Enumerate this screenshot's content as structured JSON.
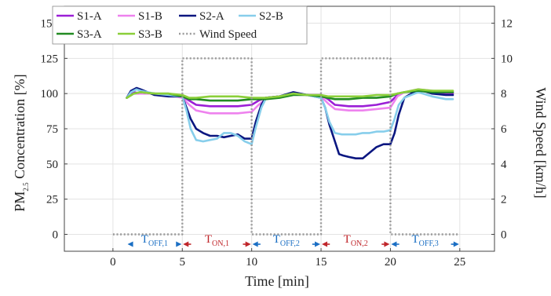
{
  "chart_data": {
    "type": "line",
    "xlabel": "Time [min]",
    "ylabel_left": {
      "main": "PM",
      "sub": "2.5",
      "rest": " Concentration [%]"
    },
    "ylabel_right": "Wind Speed [km/h]",
    "xlim": [
      -3.5,
      27.5
    ],
    "ylim_left": [
      -12,
      162
    ],
    "ylim_right": [
      -0.96,
      12.96
    ],
    "xticks": [
      0,
      5,
      10,
      15,
      20,
      25
    ],
    "yticks_left": [
      0,
      25,
      50,
      75,
      100,
      125,
      150
    ],
    "yticks_right": [
      0,
      2,
      4,
      6,
      8,
      10,
      12
    ],
    "grid": true,
    "legend": {
      "position": "top-left",
      "columns": 4
    },
    "series": [
      {
        "name": "S1-A",
        "color": "#9b1fd6",
        "x": [
          1,
          1.5,
          2,
          3,
          4,
          5,
          5.5,
          6,
          7,
          8,
          9,
          10,
          10.5,
          11,
          12,
          13,
          14,
          15,
          15.5,
          16,
          17,
          18,
          19,
          20,
          20.5,
          21,
          22,
          23,
          24,
          24.5
        ],
        "y": [
          97,
          101,
          100,
          100,
          99,
          98,
          95,
          92,
          91,
          91,
          91,
          92,
          95,
          97,
          98,
          100,
          99,
          99,
          96,
          92,
          91,
          91,
          92,
          94,
          99,
          101,
          102,
          101,
          100,
          100
        ]
      },
      {
        "name": "S1-B",
        "color": "#ee82ee",
        "x": [
          1,
          1.5,
          2,
          3,
          4,
          5,
          5.5,
          6,
          7,
          8,
          9,
          10,
          10.5,
          11,
          12,
          13,
          14,
          15,
          15.5,
          16,
          17,
          18,
          19,
          20,
          20.5,
          21,
          22,
          23,
          24,
          24.5
        ],
        "y": [
          97,
          100,
          100,
          100,
          99,
          97,
          92,
          88,
          86,
          86,
          86,
          87,
          92,
          96,
          98,
          100,
          99,
          98,
          93,
          89,
          88,
          88,
          89,
          90,
          98,
          101,
          103,
          102,
          101,
          101
        ]
      },
      {
        "name": "S2-A",
        "color": "#0a1680",
        "x": [
          1,
          1.3,
          1.7,
          2,
          2.5,
          3,
          4,
          5,
          5.3,
          5.6,
          6,
          6.5,
          7,
          7.5,
          8,
          8.5,
          9,
          9.5,
          10,
          10.3,
          10.7,
          11,
          12,
          13,
          14,
          15,
          15.3,
          15.6,
          16,
          16.3,
          16.6,
          17,
          17.5,
          18,
          18.5,
          19,
          19.5,
          20,
          20.3,
          20.6,
          21,
          22,
          23,
          24,
          24.5
        ],
        "y": [
          97,
          102,
          104,
          103,
          101,
          99,
          98,
          98,
          90,
          82,
          75,
          72,
          70,
          70,
          69,
          70,
          71,
          68,
          68,
          80,
          92,
          97,
          98,
          101,
          99,
          97,
          90,
          78,
          66,
          57,
          56,
          55,
          54,
          54,
          58,
          62,
          64,
          64,
          72,
          85,
          97,
          103,
          100,
          99,
          99
        ]
      },
      {
        "name": "S2-B",
        "color": "#87ceeb",
        "x": [
          1,
          1.3,
          1.7,
          2,
          2.5,
          3,
          4,
          5,
          5.3,
          5.6,
          6,
          6.5,
          7,
          7.5,
          8,
          8.5,
          9,
          9.5,
          10,
          10.3,
          10.7,
          11,
          12,
          13,
          14,
          15,
          15.3,
          15.6,
          16,
          16.5,
          17,
          17.5,
          18,
          18.5,
          19,
          19.5,
          20,
          20.3,
          20.6,
          21,
          22,
          23,
          24,
          24.5
        ],
        "y": [
          97,
          101,
          103,
          102,
          101,
          100,
          99,
          98,
          88,
          75,
          67,
          66,
          67,
          68,
          72,
          72,
          70,
          66,
          64,
          76,
          90,
          96,
          98,
          100,
          99,
          97,
          90,
          80,
          72,
          71,
          71,
          71,
          72,
          72,
          73,
          73,
          74,
          82,
          92,
          97,
          101,
          98,
          96,
          96
        ]
      },
      {
        "name": "S3-A",
        "color": "#228b22",
        "x": [
          1,
          1.5,
          2,
          3,
          4,
          5,
          5.5,
          6,
          7,
          8,
          9,
          10,
          10.5,
          11,
          12,
          13,
          14,
          15,
          15.5,
          16,
          17,
          18,
          19,
          20,
          20.5,
          21,
          22,
          23,
          24,
          24.5
        ],
        "y": [
          97,
          100,
          101,
          100,
          100,
          98,
          96,
          96,
          95,
          95,
          95,
          96,
          96,
          96,
          97,
          99,
          99,
          98,
          97,
          96,
          96,
          97,
          97,
          98,
          100,
          101,
          102,
          101,
          101,
          101
        ]
      },
      {
        "name": "S3-B",
        "color": "#8bcf3a",
        "x": [
          1,
          1.5,
          2,
          3,
          4,
          5,
          5.5,
          6,
          7,
          8,
          9,
          10,
          10.5,
          11,
          12,
          13,
          14,
          15,
          15.5,
          16,
          17,
          18,
          19,
          20,
          20.5,
          21,
          22,
          23,
          24,
          24.5
        ],
        "y": [
          97,
          100,
          101,
          100,
          100,
          99,
          97,
          97,
          98,
          98,
          98,
          97,
          97,
          97,
          98,
          100,
          99,
          99,
          98,
          98,
          98,
          98,
          99,
          99,
          100,
          101,
          103,
          102,
          102,
          102
        ]
      },
      {
        "name": "Wind Speed",
        "color": "#9a9a9a",
        "dashed": true,
        "axis": "right",
        "x": [
          0,
          5,
          5,
          10,
          10,
          15,
          15,
          20,
          20,
          25
        ],
        "y": [
          0,
          0,
          10,
          10,
          0,
          0,
          10,
          10,
          0,
          0
        ]
      }
    ],
    "phases": [
      {
        "main": "T",
        "sub": "OFF,1",
        "from": 1,
        "to": 5,
        "color": "#1b6fc4"
      },
      {
        "main": "T",
        "sub": "ON,1",
        "from": 5,
        "to": 10,
        "color": "#c0262b"
      },
      {
        "main": "T",
        "sub": "OFF,2",
        "from": 10,
        "to": 15,
        "color": "#1b6fc4"
      },
      {
        "main": "T",
        "sub": "ON,2",
        "from": 15,
        "to": 20,
        "color": "#c0262b"
      },
      {
        "main": "T",
        "sub": "OFF,3",
        "from": 20,
        "to": 25,
        "color": "#1b6fc4"
      }
    ],
    "phase_level": -7
  }
}
